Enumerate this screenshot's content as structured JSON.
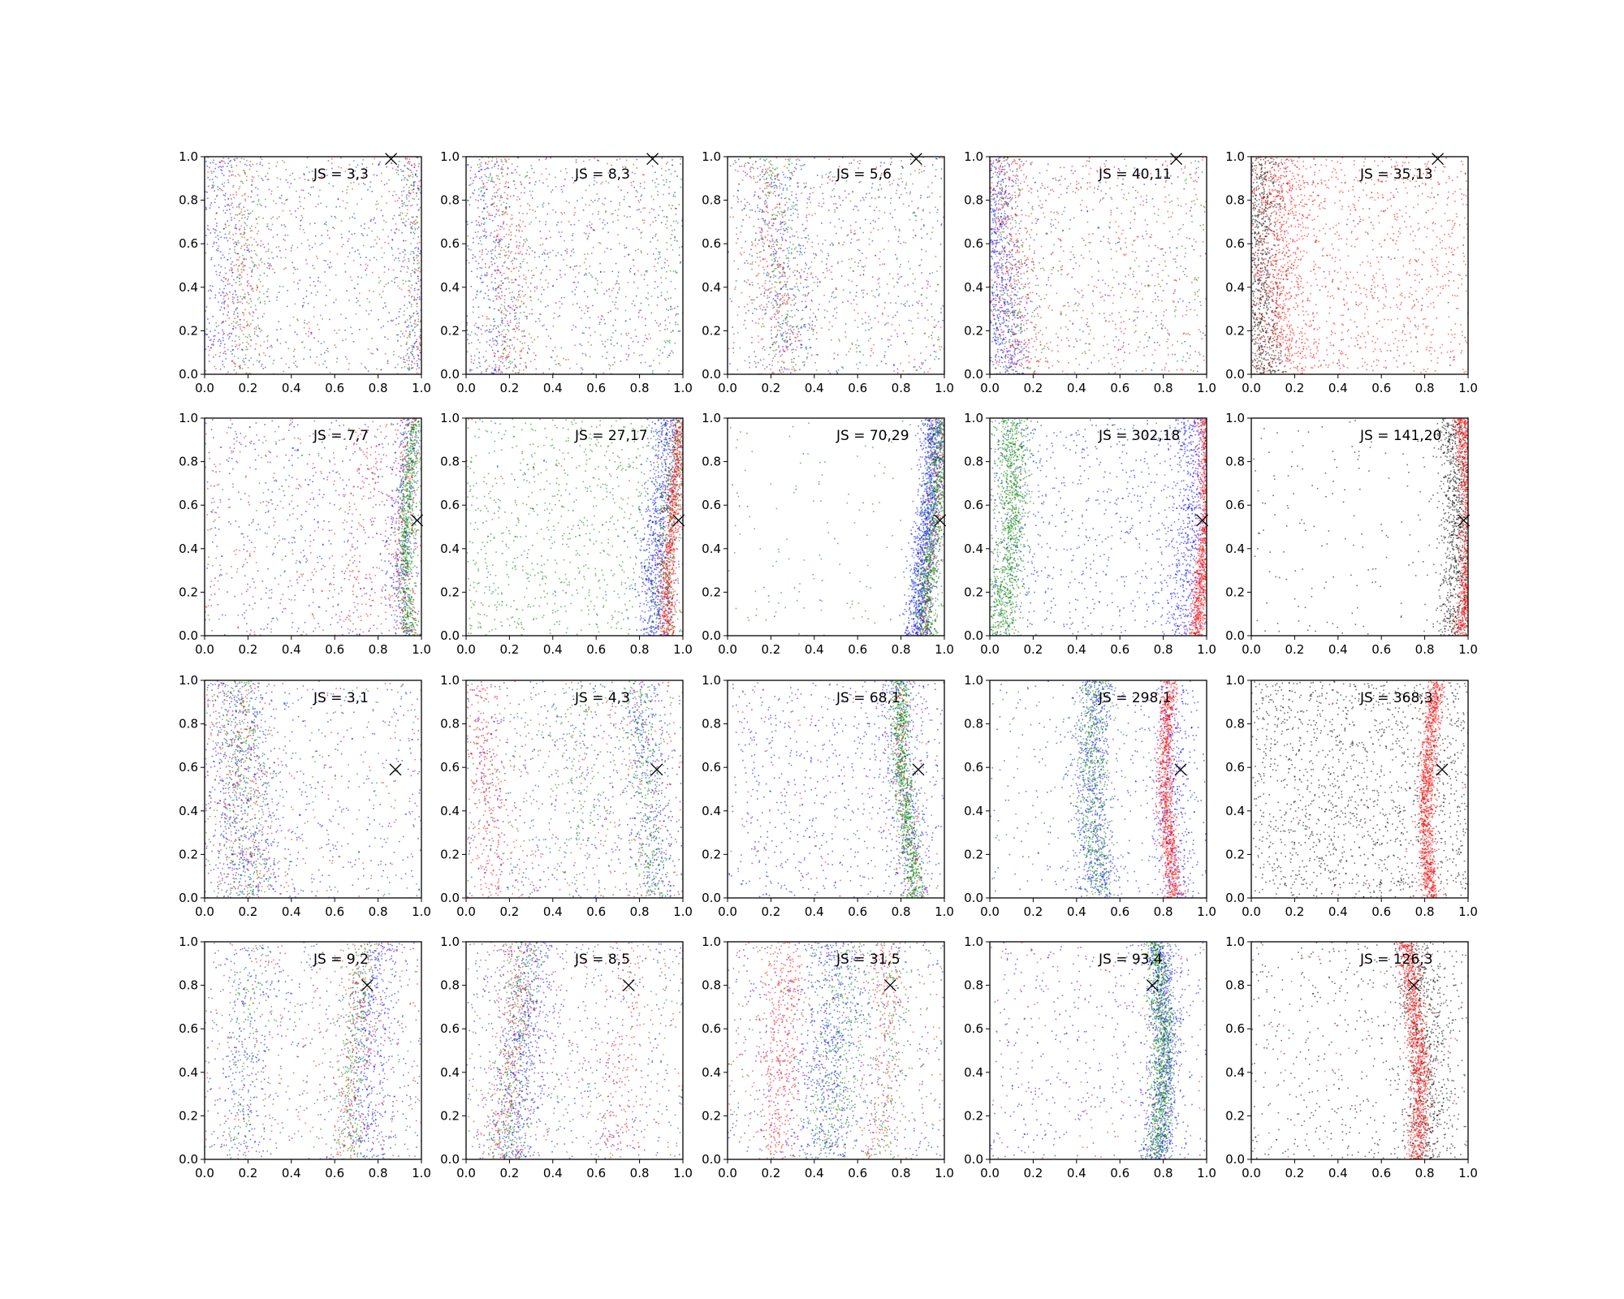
{
  "figure": {
    "xlim": [
      0,
      1
    ],
    "ylim": [
      0,
      1
    ],
    "x_tick_labels": [
      "0.0",
      "0.2",
      "0.4",
      "0.6",
      "0.8",
      "1.0"
    ],
    "y_tick_labels": [
      "0.0",
      "0.2",
      "0.4",
      "0.6",
      "0.8",
      "1.0"
    ],
    "colors": {
      "blue": "#0000ff",
      "red": "#ff0000",
      "green": "#008000",
      "black": "#000000"
    }
  },
  "chart_data": [
    {
      "type": "scatter",
      "row": 0,
      "col": 0,
      "annotation": "JS = 3,3",
      "marker": {
        "x": 0.86,
        "y": 0.99
      },
      "series": [
        {
          "color": "blue",
          "bands": [
            [
              0.04,
              0.06,
              200
            ],
            [
              0.96,
              0.04,
              200
            ]
          ],
          "uniform": 380
        },
        {
          "color": "red",
          "bands": [
            [
              0.15,
              0.05,
              160
            ],
            [
              0.95,
              0.04,
              120
            ]
          ],
          "uniform": 260
        },
        {
          "color": "green",
          "bands": [
            [
              0.16,
              0.06,
              160
            ],
            [
              0.93,
              0.04,
              120
            ]
          ],
          "uniform": 260
        }
      ]
    },
    {
      "type": "scatter",
      "row": 0,
      "col": 1,
      "annotation": "JS = 8,3",
      "marker": {
        "x": 0.86,
        "y": 0.99
      },
      "series": [
        {
          "color": "blue",
          "bands": [
            [
              0.08,
              0.06,
              220
            ]
          ],
          "uniform": 380
        },
        {
          "color": "red",
          "bands": [
            [
              0.17,
              0.05,
              200
            ]
          ],
          "uniform": 300
        },
        {
          "color": "green",
          "bands": [
            [
              0.16,
              0.06,
              160
            ],
            [
              0.92,
              0.05,
              100
            ]
          ],
          "uniform": 260
        }
      ]
    },
    {
      "type": "scatter",
      "row": 0,
      "col": 2,
      "annotation": "JS = 5,6",
      "marker": {
        "x": 0.87,
        "y": 0.99
      },
      "series": [
        {
          "color": "blue",
          "bands": [
            [
              0.26,
              0.07,
              220
            ]
          ],
          "uniform": 360
        },
        {
          "color": "red",
          "bands": [
            [
              0.2,
              0.06,
              220
            ]
          ],
          "uniform": 300
        },
        {
          "color": "green",
          "bands": [
            [
              0.24,
              0.06,
              240
            ]
          ],
          "uniform": 300
        }
      ]
    },
    {
      "type": "scatter",
      "row": 0,
      "col": 3,
      "annotation": "JS = 40,11",
      "marker": {
        "x": 0.86,
        "y": 0.99
      },
      "series": [
        {
          "color": "blue",
          "bands": [
            [
              0.06,
              0.05,
              700
            ]
          ],
          "uniform": 200
        },
        {
          "color": "red",
          "bands": [
            [
              0.12,
              0.06,
              300
            ]
          ],
          "uniform": 500
        },
        {
          "color": "green",
          "bands": [
            [
              0.1,
              0.07,
              220
            ]
          ],
          "uniform": 260
        }
      ]
    },
    {
      "type": "scatter",
      "row": 0,
      "col": 4,
      "annotation": "JS = 35,13",
      "marker": {
        "x": 0.86,
        "y": 0.99
      },
      "series": [
        {
          "color": "black",
          "bands": [
            [
              0.06,
              0.05,
              900
            ]
          ],
          "uniform": 80
        },
        {
          "color": "red",
          "bands": [
            [
              0.16,
              0.07,
              600
            ]
          ],
          "uniform": 1100
        }
      ]
    },
    {
      "type": "scatter",
      "row": 1,
      "col": 0,
      "annotation": "JS = 7,7",
      "marker": {
        "x": 0.98,
        "y": 0.53
      },
      "series": [
        {
          "color": "blue",
          "bands": [
            [
              0.93,
              0.03,
              300
            ]
          ],
          "uniform": 450
        },
        {
          "color": "red",
          "bands": [
            [
              0.75,
              0.05,
              120
            ],
            [
              0.94,
              0.03,
              200
            ]
          ],
          "uniform": 300
        },
        {
          "color": "green",
          "bands": [
            [
              0.96,
              0.02,
              700
            ]
          ],
          "uniform": 150
        }
      ]
    },
    {
      "type": "scatter",
      "row": 1,
      "col": 1,
      "annotation": "JS = 27,17",
      "marker": {
        "x": 0.98,
        "y": 0.53
      },
      "series": [
        {
          "color": "blue",
          "bands": [
            [
              0.9,
              0.04,
              800
            ]
          ],
          "uniform": 40
        },
        {
          "color": "red",
          "bands": [
            [
              0.96,
              0.02,
              900
            ]
          ],
          "uniform": 20
        },
        {
          "color": "green",
          "bands": [
            [
              0.94,
              0.03,
              250
            ]
          ],
          "uniform": 900
        }
      ]
    },
    {
      "type": "scatter",
      "row": 1,
      "col": 2,
      "annotation": "JS = 70,29",
      "marker": {
        "x": 0.98,
        "y": 0.53
      },
      "series": [
        {
          "color": "blue",
          "bands": [
            [
              0.91,
              0.03,
              1200
            ]
          ],
          "uniform": 20
        },
        {
          "color": "red",
          "bands": [
            [
              0.94,
              0.02,
              200
            ]
          ],
          "uniform": 0
        },
        {
          "color": "green",
          "bands": [
            [
              0.94,
              0.03,
              900
            ]
          ],
          "uniform": 120
        }
      ]
    },
    {
      "type": "scatter",
      "row": 1,
      "col": 3,
      "annotation": "JS = 302,18",
      "marker": {
        "x": 0.98,
        "y": 0.53
      },
      "series": [
        {
          "color": "blue",
          "bands": [
            [
              0.9,
              0.05,
              600
            ]
          ],
          "uniform": 700
        },
        {
          "color": "red",
          "bands": [
            [
              0.97,
              0.02,
              1200
            ]
          ],
          "uniform": 0
        },
        {
          "color": "green",
          "bands": [
            [
              0.07,
              0.04,
              1100
            ]
          ],
          "uniform": 40
        }
      ]
    },
    {
      "type": "scatter",
      "row": 1,
      "col": 4,
      "annotation": "JS = 141,20",
      "marker": {
        "x": 0.98,
        "y": 0.53
      },
      "series": [
        {
          "color": "black",
          "bands": [
            [
              0.92,
              0.04,
              900
            ]
          ],
          "uniform": 180
        },
        {
          "color": "red",
          "bands": [
            [
              0.97,
              0.02,
              1200
            ]
          ],
          "uniform": 0
        }
      ]
    },
    {
      "type": "scatter",
      "row": 2,
      "col": 0,
      "annotation": "JS = 3,1",
      "marker": {
        "x": 0.88,
        "y": 0.59
      },
      "series": [
        {
          "color": "blue",
          "bands": [
            [
              0.16,
              0.09,
              500
            ]
          ],
          "uniform": 380
        },
        {
          "color": "red",
          "bands": [
            [
              0.15,
              0.08,
              260
            ]
          ],
          "uniform": 160
        },
        {
          "color": "green",
          "bands": [
            [
              0.16,
              0.07,
              450
            ]
          ],
          "uniform": 120
        }
      ]
    },
    {
      "type": "scatter",
      "row": 2,
      "col": 1,
      "annotation": "JS = 4,3",
      "marker": {
        "x": 0.88,
        "y": 0.59
      },
      "series": [
        {
          "color": "blue",
          "bands": [
            [
              0.84,
              0.05,
              300
            ]
          ],
          "uniform": 420
        },
        {
          "color": "red",
          "bands": [
            [
              0.08,
              0.05,
              280
            ]
          ],
          "uniform": 300
        },
        {
          "color": "green",
          "bands": [
            [
              0.82,
              0.04,
              300
            ],
            [
              0.5,
              0.06,
              120
            ]
          ],
          "uniform": 260
        }
      ]
    },
    {
      "type": "scatter",
      "row": 2,
      "col": 2,
      "annotation": "JS = 68,1",
      "marker": {
        "x": 0.88,
        "y": 0.59
      },
      "series": [
        {
          "color": "blue",
          "bands": [
            [
              0.82,
              0.05,
              300
            ]
          ],
          "uniform": 650
        },
        {
          "color": "red",
          "bands": [
            [
              0.83,
              0.03,
              160
            ]
          ],
          "uniform": 100
        },
        {
          "color": "green",
          "bands": [
            [
              0.83,
              0.025,
              900
            ]
          ],
          "uniform": 20
        }
      ]
    },
    {
      "type": "scatter",
      "row": 2,
      "col": 3,
      "annotation": "JS = 298,1",
      "marker": {
        "x": 0.88,
        "y": 0.59
      },
      "series": [
        {
          "color": "blue",
          "bands": [
            [
              0.5,
              0.05,
              600
            ],
            [
              0.86,
              0.05,
              400
            ]
          ],
          "uniform": 300
        },
        {
          "color": "red",
          "bands": [
            [
              0.84,
              0.02,
              1000
            ]
          ],
          "uniform": 0
        },
        {
          "color": "green",
          "bands": [
            [
              0.5,
              0.04,
              600
            ]
          ],
          "uniform": 60
        }
      ]
    },
    {
      "type": "scatter",
      "row": 2,
      "col": 4,
      "annotation": "JS = 368,3",
      "marker": {
        "x": 0.88,
        "y": 0.59
      },
      "series": [
        {
          "color": "black",
          "bands": [],
          "uniform": 1500
        },
        {
          "color": "red",
          "bands": [
            [
              0.84,
              0.02,
              1200
            ]
          ],
          "uniform": 15
        }
      ]
    },
    {
      "type": "scatter",
      "row": 3,
      "col": 0,
      "annotation": "JS = 9,2",
      "marker": {
        "x": 0.75,
        "y": 0.8
      },
      "series": [
        {
          "color": "blue",
          "bands": [
            [
              0.78,
              0.05,
              400
            ],
            [
              0.2,
              0.06,
              200
            ]
          ],
          "uniform": 300
        },
        {
          "color": "red",
          "bands": [
            [
              0.7,
              0.05,
              200
            ]
          ],
          "uniform": 250
        },
        {
          "color": "green",
          "bands": [
            [
              0.7,
              0.04,
              300
            ],
            [
              0.2,
              0.04,
              120
            ]
          ],
          "uniform": 200
        }
      ]
    },
    {
      "type": "scatter",
      "row": 3,
      "col": 1,
      "annotation": "JS = 8,5",
      "marker": {
        "x": 0.75,
        "y": 0.8
      },
      "series": [
        {
          "color": "blue",
          "bands": [
            [
              0.25,
              0.06,
              500
            ]
          ],
          "uniform": 380
        },
        {
          "color": "red",
          "bands": [
            [
              0.2,
              0.05,
              300
            ],
            [
              0.72,
              0.05,
              150
            ]
          ],
          "uniform": 200
        },
        {
          "color": "green",
          "bands": [
            [
              0.22,
              0.05,
              350
            ]
          ],
          "uniform": 200
        }
      ]
    },
    {
      "type": "scatter",
      "row": 3,
      "col": 2,
      "annotation": "JS = 31,5",
      "marker": {
        "x": 0.75,
        "y": 0.8
      },
      "series": [
        {
          "color": "blue",
          "bands": [
            [
              0.45,
              0.08,
              500
            ]
          ],
          "uniform": 380
        },
        {
          "color": "red",
          "bands": [
            [
              0.22,
              0.05,
              450
            ],
            [
              0.7,
              0.04,
              200
            ]
          ],
          "uniform": 160
        },
        {
          "color": "green",
          "bands": [
            [
              0.48,
              0.07,
              400
            ],
            [
              0.72,
              0.04,
              150
            ]
          ],
          "uniform": 150
        }
      ]
    },
    {
      "type": "scatter",
      "row": 3,
      "col": 3,
      "annotation": "JS = 93,4",
      "marker": {
        "x": 0.75,
        "y": 0.8
      },
      "series": [
        {
          "color": "blue",
          "bands": [
            [
              0.77,
              0.04,
              800
            ]
          ],
          "uniform": 400
        },
        {
          "color": "red",
          "bands": [],
          "uniform": 140
        },
        {
          "color": "green",
          "bands": [
            [
              0.76,
              0.03,
              1000
            ]
          ],
          "uniform": 0
        }
      ]
    },
    {
      "type": "scatter",
      "row": 3,
      "col": 4,
      "annotation": "JS = 126,3",
      "marker": {
        "x": 0.75,
        "y": 0.8
      },
      "series": [
        {
          "color": "black",
          "bands": [
            [
              0.78,
              0.06,
              700
            ]
          ],
          "uniform": 500
        },
        {
          "color": "red",
          "bands": [
            [
              0.74,
              0.025,
              1100
            ]
          ],
          "uniform": 60
        }
      ]
    }
  ]
}
